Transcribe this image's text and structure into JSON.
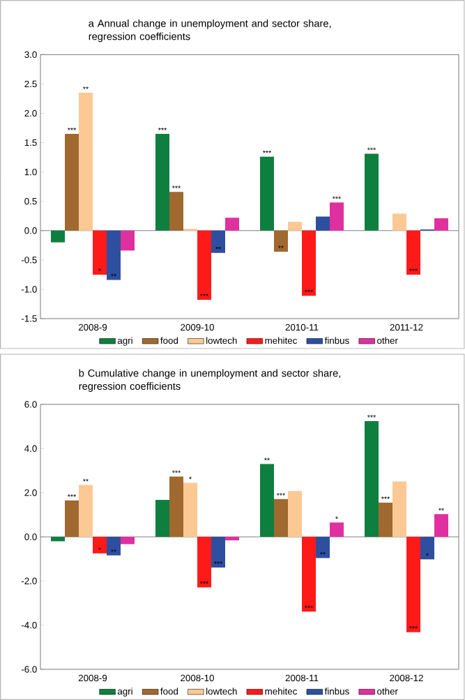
{
  "chart_data": [
    {
      "type": "bar",
      "title": "a Annual change in unemployment and sector share, regression coefficients",
      "categories": [
        "2008-9",
        "2009-10",
        "2010-11",
        "2011-12"
      ],
      "series": [
        {
          "name": "agri",
          "color": "#0f7f3f",
          "values": [
            -0.2,
            1.65,
            1.26,
            1.31
          ],
          "value_labels": [
            null,
            "***",
            "***",
            "***"
          ]
        },
        {
          "name": "food",
          "color": "#a0692f",
          "values": [
            1.65,
            0.66,
            -0.36,
            null
          ],
          "value_labels": [
            "***",
            "***",
            "**",
            null
          ]
        },
        {
          "name": "lowtech",
          "color": "#fcc994",
          "values": [
            2.35,
            0.03,
            0.15,
            0.29
          ],
          "value_labels": [
            "**",
            null,
            null,
            null
          ]
        },
        {
          "name": "mehitec",
          "color": "#ff1a1a",
          "values": [
            -0.75,
            -1.18,
            -1.11,
            -0.75
          ],
          "value_labels": [
            "*",
            "***",
            "***",
            "***"
          ]
        },
        {
          "name": "finbus",
          "color": "#2e4fa0",
          "values": [
            -0.84,
            -0.38,
            0.24,
            0.02
          ],
          "value_labels": [
            "**",
            "**",
            null,
            null
          ]
        },
        {
          "name": "other",
          "color": "#e0309f",
          "values": [
            -0.34,
            0.22,
            0.48,
            0.21
          ],
          "value_labels": [
            null,
            null,
            "***",
            null
          ]
        }
      ],
      "ylim": [
        -1.5,
        3.0
      ],
      "yticks": [
        {
          "value": -1.5,
          "label": "-1.5"
        },
        {
          "value": -1.0,
          "label": "-1.0"
        },
        {
          "value": -0.5,
          "label": "-0.5"
        },
        {
          "value": 0,
          "label": "0.0"
        },
        {
          "value": 0.5,
          "label": "0.5"
        },
        {
          "value": 1.0,
          "label": "1.0"
        },
        {
          "value": 1.5,
          "label": "1.5"
        },
        {
          "value": 2.0,
          "label": "2.0"
        },
        {
          "value": 2.5,
          "label": "2.5"
        },
        {
          "value": 3.0,
          "label": "3.0"
        }
      ],
      "legend": "bottom"
    },
    {
      "type": "bar",
      "title": "b Cumulative change in unemployment and sector share, regression coefficients",
      "categories": [
        "2008-9",
        "2008-10",
        "2008-11",
        "2008-12"
      ],
      "series": [
        {
          "name": "agri",
          "color": "#0f7f3f",
          "values": [
            -0.2,
            1.67,
            3.3,
            5.24
          ],
          "value_labels": [
            null,
            null,
            "**",
            "***"
          ]
        },
        {
          "name": "food",
          "color": "#a0692f",
          "values": [
            1.65,
            2.73,
            1.71,
            1.55
          ],
          "value_labels": [
            "***",
            "***",
            "***",
            "***"
          ]
        },
        {
          "name": "lowtech",
          "color": "#fcc994",
          "values": [
            2.35,
            2.45,
            2.08,
            2.51
          ],
          "value_labels": [
            "**",
            "*",
            null,
            null
          ]
        },
        {
          "name": "mehitec",
          "color": "#ff1a1a",
          "values": [
            -0.75,
            -2.29,
            -3.39,
            -4.32
          ],
          "value_labels": [
            "*",
            "***",
            "***",
            "***"
          ]
        },
        {
          "name": "finbus",
          "color": "#2e4fa0",
          "values": [
            -0.84,
            -1.39,
            -0.96,
            -1.02
          ],
          "value_labels": [
            "**",
            "***",
            "**",
            "*"
          ]
        },
        {
          "name": "other",
          "color": "#e0309f",
          "values": [
            -0.33,
            -0.16,
            0.65,
            1.03
          ],
          "value_labels": [
            null,
            null,
            "*",
            "**"
          ]
        }
      ],
      "ylim": [
        -6.0,
        6.0
      ],
      "yticks": [
        {
          "value": -6.0,
          "label": "-6.0"
        },
        {
          "value": -4.0,
          "label": "-4.0"
        },
        {
          "value": -2.0,
          "label": "-2.0"
        },
        {
          "value": 0,
          "label": "0.0"
        },
        {
          "value": 2.0,
          "label": "2.0"
        },
        {
          "value": 4.0,
          "label": "4.0"
        },
        {
          "value": 6.0,
          "label": "6.0"
        }
      ],
      "legend": "bottom"
    }
  ]
}
